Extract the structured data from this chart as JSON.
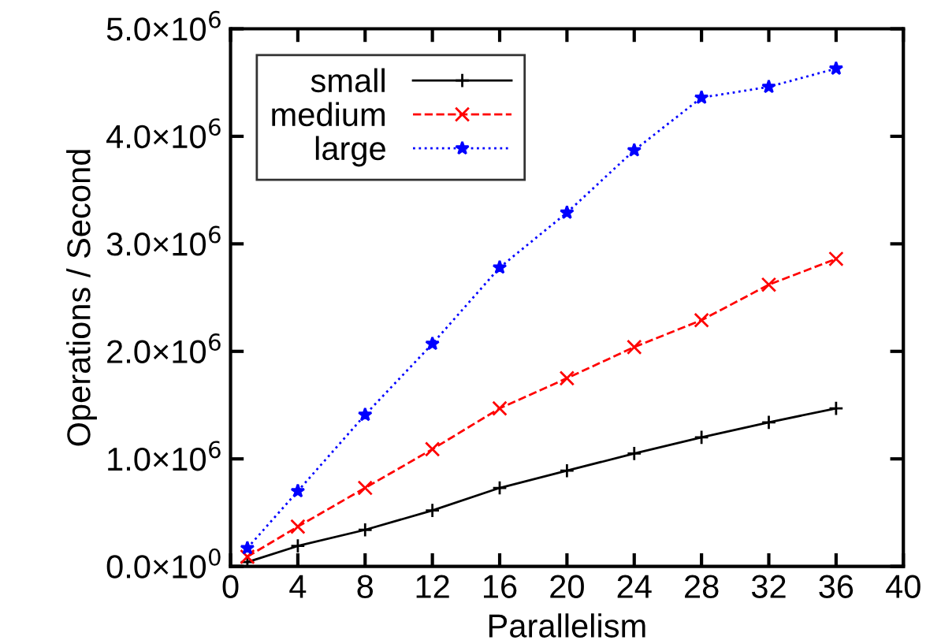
{
  "chart_data": {
    "type": "line",
    "xlabel": "Parallelism",
    "ylabel": "Operations / Second",
    "x": [
      1,
      4,
      8,
      12,
      16,
      20,
      24,
      28,
      32,
      36
    ],
    "series": [
      {
        "name": "small",
        "color": "#000000",
        "marker": "cross",
        "line_style": "solid",
        "values": [
          40000,
          190000,
          340000,
          520000,
          730000,
          890000,
          1050000,
          1200000,
          1340000,
          1470000
        ]
      },
      {
        "name": "medium",
        "color": "#ff0000",
        "marker": "x",
        "line_style": "dashed",
        "values": [
          90000,
          370000,
          730000,
          1090000,
          1470000,
          1750000,
          2040000,
          2290000,
          2620000,
          2860000
        ]
      },
      {
        "name": "large",
        "color": "#0000ff",
        "marker": "star",
        "line_style": "dotted",
        "values": [
          170000,
          700000,
          1410000,
          2070000,
          2780000,
          3290000,
          3870000,
          4360000,
          4460000,
          4630000
        ]
      }
    ],
    "xlim": [
      0,
      40
    ],
    "xticks": [
      0,
      4,
      8,
      12,
      16,
      20,
      24,
      28,
      32,
      36,
      40
    ],
    "ylim": [
      0,
      5000000
    ],
    "yticks": [
      {
        "value": 0,
        "label": "0.0×10$^{0}$"
      },
      {
        "value": 1000000,
        "label": "1.0×10$^{6}$"
      },
      {
        "value": 2000000,
        "label": "2.0×10$^{6}$"
      },
      {
        "value": 3000000,
        "label": "3.0×10$^{6}$"
      },
      {
        "value": 4000000,
        "label": "4.0×10$^{6}$"
      },
      {
        "value": 5000000,
        "label": "5.0×10$^{6}$"
      }
    ],
    "legend": "top left",
    "grid": false
  }
}
